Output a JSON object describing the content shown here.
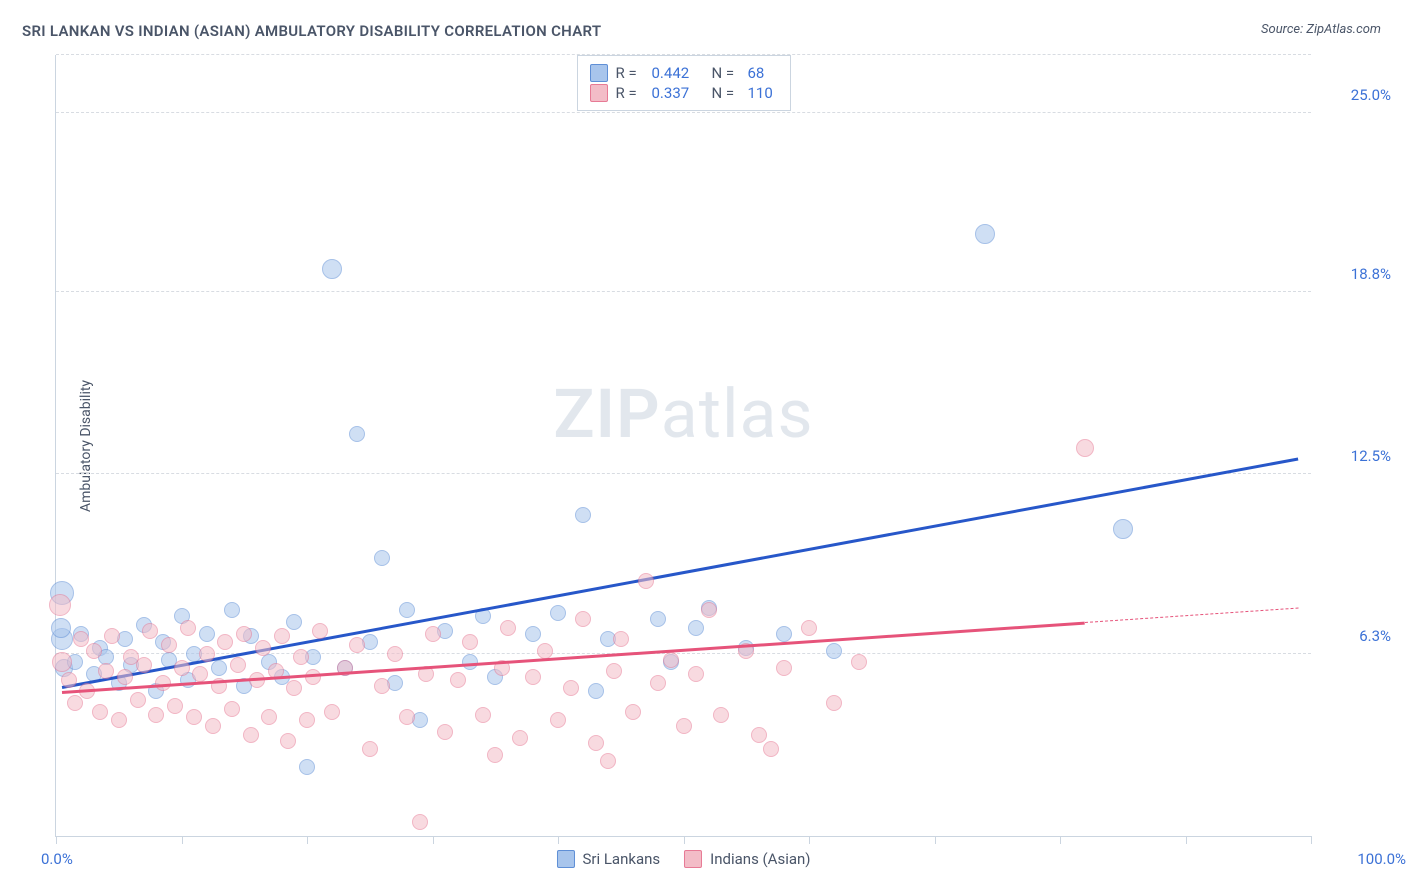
{
  "title": "SRI LANKAN VS INDIAN (ASIAN) AMBULATORY DISABILITY CORRELATION CHART",
  "source": "Source: ZipAtlas.com",
  "ylabel": "Ambulatory Disability",
  "watermark_bold": "ZIP",
  "watermark_rest": "atlas",
  "chart": {
    "type": "scatter",
    "xlim": [
      0,
      100
    ],
    "ylim": [
      0,
      27
    ],
    "yticks": [
      {
        "v": 6.3,
        "label": "6.3%"
      },
      {
        "v": 12.5,
        "label": "12.5%"
      },
      {
        "v": 18.8,
        "label": "18.8%"
      },
      {
        "v": 25.0,
        "label": "25.0%"
      }
    ],
    "xticks_pct": [
      0,
      10,
      20,
      30,
      40,
      50,
      60,
      70,
      80,
      90,
      100
    ],
    "xlim_left_label": "0.0%",
    "xlim_right_label": "100.0%",
    "background_color": "#ffffff",
    "grid_color": "#d8dce2",
    "point_radius": 8,
    "point_opacity": 0.55,
    "series": [
      {
        "name": "Sri Lankans",
        "fill": "#a8c5ec",
        "stroke": "#5f8fd6",
        "line_color": "#2757c9",
        "R": "0.442",
        "N": "68",
        "trend": {
          "x1": 0.5,
          "y1": 5.2,
          "x2": 99,
          "y2": 13.1
        },
        "points": [
          {
            "x": 0.5,
            "y": 6.8,
            "r": 11
          },
          {
            "x": 0.5,
            "y": 8.4,
            "r": 12
          },
          {
            "x": 0.4,
            "y": 7.2,
            "r": 10
          },
          {
            "x": 0.6,
            "y": 5.8,
            "r": 9
          },
          {
            "x": 1.5,
            "y": 6.0
          },
          {
            "x": 2,
            "y": 7.0
          },
          {
            "x": 3,
            "y": 5.6
          },
          {
            "x": 3.5,
            "y": 6.5
          },
          {
            "x": 4,
            "y": 6.2
          },
          {
            "x": 5,
            "y": 5.3
          },
          {
            "x": 5.5,
            "y": 6.8
          },
          {
            "x": 6,
            "y": 5.9
          },
          {
            "x": 7,
            "y": 7.3
          },
          {
            "x": 8,
            "y": 5.0
          },
          {
            "x": 8.5,
            "y": 6.7
          },
          {
            "x": 9,
            "y": 6.1
          },
          {
            "x": 10,
            "y": 7.6
          },
          {
            "x": 10.5,
            "y": 5.4
          },
          {
            "x": 11,
            "y": 6.3
          },
          {
            "x": 12,
            "y": 7.0
          },
          {
            "x": 13,
            "y": 5.8
          },
          {
            "x": 14,
            "y": 7.8
          },
          {
            "x": 15,
            "y": 5.2
          },
          {
            "x": 15.5,
            "y": 6.9
          },
          {
            "x": 17,
            "y": 6.0
          },
          {
            "x": 18,
            "y": 5.5
          },
          {
            "x": 19,
            "y": 7.4
          },
          {
            "x": 20,
            "y": 2.4
          },
          {
            "x": 20.5,
            "y": 6.2
          },
          {
            "x": 22,
            "y": 19.6,
            "r": 10
          },
          {
            "x": 23,
            "y": 5.8
          },
          {
            "x": 24,
            "y": 13.9
          },
          {
            "x": 25,
            "y": 6.7
          },
          {
            "x": 26,
            "y": 9.6
          },
          {
            "x": 27,
            "y": 5.3
          },
          {
            "x": 28,
            "y": 7.8
          },
          {
            "x": 29,
            "y": 4.0
          },
          {
            "x": 31,
            "y": 7.1
          },
          {
            "x": 33,
            "y": 6.0
          },
          {
            "x": 34,
            "y": 7.6
          },
          {
            "x": 35,
            "y": 5.5
          },
          {
            "x": 38,
            "y": 7.0
          },
          {
            "x": 40,
            "y": 7.7
          },
          {
            "x": 42,
            "y": 11.1
          },
          {
            "x": 43,
            "y": 5.0
          },
          {
            "x": 44,
            "y": 6.8
          },
          {
            "x": 48,
            "y": 7.5
          },
          {
            "x": 49,
            "y": 6.0
          },
          {
            "x": 51,
            "y": 7.2
          },
          {
            "x": 52,
            "y": 7.9
          },
          {
            "x": 55,
            "y": 6.5
          },
          {
            "x": 58,
            "y": 7.0
          },
          {
            "x": 62,
            "y": 6.4
          },
          {
            "x": 74,
            "y": 20.8,
            "r": 10
          },
          {
            "x": 85,
            "y": 10.6,
            "r": 10
          }
        ]
      },
      {
        "name": "Indians (Asian)",
        "fill": "#f3bcc7",
        "stroke": "#e77a95",
        "line_color": "#e6537a",
        "R": "0.337",
        "N": "110",
        "trend": {
          "x1": 0.5,
          "y1": 5.0,
          "x2": 82,
          "y2": 7.4
        },
        "trend_dash": {
          "x1": 82,
          "y1": 7.4,
          "x2": 99,
          "y2": 7.9
        },
        "points": [
          {
            "x": 0.3,
            "y": 8.0,
            "r": 11
          },
          {
            "x": 0.5,
            "y": 6.0,
            "r": 10
          },
          {
            "x": 1,
            "y": 5.4
          },
          {
            "x": 1.5,
            "y": 4.6
          },
          {
            "x": 2,
            "y": 6.8
          },
          {
            "x": 2.5,
            "y": 5.0
          },
          {
            "x": 3,
            "y": 6.4
          },
          {
            "x": 3.5,
            "y": 4.3
          },
          {
            "x": 4,
            "y": 5.7
          },
          {
            "x": 4.5,
            "y": 6.9
          },
          {
            "x": 5,
            "y": 4.0
          },
          {
            "x": 5.5,
            "y": 5.5
          },
          {
            "x": 6,
            "y": 6.2
          },
          {
            "x": 6.5,
            "y": 4.7
          },
          {
            "x": 7,
            "y": 5.9
          },
          {
            "x": 7.5,
            "y": 7.1
          },
          {
            "x": 8,
            "y": 4.2
          },
          {
            "x": 8.5,
            "y": 5.3
          },
          {
            "x": 9,
            "y": 6.6
          },
          {
            "x": 9.5,
            "y": 4.5
          },
          {
            "x": 10,
            "y": 5.8
          },
          {
            "x": 10.5,
            "y": 7.2
          },
          {
            "x": 11,
            "y": 4.1
          },
          {
            "x": 11.5,
            "y": 5.6
          },
          {
            "x": 12,
            "y": 6.3
          },
          {
            "x": 12.5,
            "y": 3.8
          },
          {
            "x": 13,
            "y": 5.2
          },
          {
            "x": 13.5,
            "y": 6.7
          },
          {
            "x": 14,
            "y": 4.4
          },
          {
            "x": 14.5,
            "y": 5.9
          },
          {
            "x": 15,
            "y": 7.0
          },
          {
            "x": 15.5,
            "y": 3.5
          },
          {
            "x": 16,
            "y": 5.4
          },
          {
            "x": 16.5,
            "y": 6.5
          },
          {
            "x": 17,
            "y": 4.1
          },
          {
            "x": 17.5,
            "y": 5.7
          },
          {
            "x": 18,
            "y": 6.9
          },
          {
            "x": 18.5,
            "y": 3.3
          },
          {
            "x": 19,
            "y": 5.1
          },
          {
            "x": 19.5,
            "y": 6.2
          },
          {
            "x": 20,
            "y": 4.0
          },
          {
            "x": 20.5,
            "y": 5.5
          },
          {
            "x": 21,
            "y": 7.1
          },
          {
            "x": 22,
            "y": 4.3
          },
          {
            "x": 23,
            "y": 5.8
          },
          {
            "x": 24,
            "y": 6.6
          },
          {
            "x": 25,
            "y": 3.0
          },
          {
            "x": 26,
            "y": 5.2
          },
          {
            "x": 27,
            "y": 6.3
          },
          {
            "x": 28,
            "y": 4.1
          },
          {
            "x": 29,
            "y": 0.5
          },
          {
            "x": 29.5,
            "y": 5.6
          },
          {
            "x": 30,
            "y": 7.0
          },
          {
            "x": 31,
            "y": 3.6
          },
          {
            "x": 32,
            "y": 5.4
          },
          {
            "x": 33,
            "y": 6.7
          },
          {
            "x": 34,
            "y": 4.2
          },
          {
            "x": 35,
            "y": 2.8
          },
          {
            "x": 35.5,
            "y": 5.8
          },
          {
            "x": 36,
            "y": 7.2
          },
          {
            "x": 37,
            "y": 3.4
          },
          {
            "x": 38,
            "y": 5.5
          },
          {
            "x": 39,
            "y": 6.4
          },
          {
            "x": 40,
            "y": 4.0
          },
          {
            "x": 41,
            "y": 5.1
          },
          {
            "x": 42,
            "y": 7.5
          },
          {
            "x": 43,
            "y": 3.2
          },
          {
            "x": 44,
            "y": 2.6
          },
          {
            "x": 44.5,
            "y": 5.7
          },
          {
            "x": 45,
            "y": 6.8
          },
          {
            "x": 46,
            "y": 4.3
          },
          {
            "x": 47,
            "y": 8.8
          },
          {
            "x": 48,
            "y": 5.3
          },
          {
            "x": 49,
            "y": 6.1
          },
          {
            "x": 50,
            "y": 3.8
          },
          {
            "x": 51,
            "y": 5.6
          },
          {
            "x": 52,
            "y": 7.8
          },
          {
            "x": 53,
            "y": 4.2
          },
          {
            "x": 55,
            "y": 6.4
          },
          {
            "x": 56,
            "y": 3.5
          },
          {
            "x": 57,
            "y": 3.0
          },
          {
            "x": 58,
            "y": 5.8
          },
          {
            "x": 60,
            "y": 7.2
          },
          {
            "x": 62,
            "y": 4.6
          },
          {
            "x": 64,
            "y": 6.0
          },
          {
            "x": 82,
            "y": 13.4,
            "r": 9
          }
        ]
      }
    ]
  },
  "legend_top": {
    "rows": [
      {
        "sq_fill": "#a8c5ec",
        "sq_stroke": "#5f8fd6",
        "r_label": "R =",
        "r_val": "0.442",
        "n_label": "N =",
        "n_val": "68"
      },
      {
        "sq_fill": "#f3bcc7",
        "sq_stroke": "#e77a95",
        "r_label": "R =",
        "r_val": "0.337",
        "n_label": "N =",
        "n_val": "110"
      }
    ]
  },
  "legend_bottom": [
    {
      "sq_fill": "#a8c5ec",
      "sq_stroke": "#5f8fd6",
      "label": "Sri Lankans"
    },
    {
      "sq_fill": "#f3bcc7",
      "sq_stroke": "#e77a95",
      "label": "Indians (Asian)"
    }
  ]
}
